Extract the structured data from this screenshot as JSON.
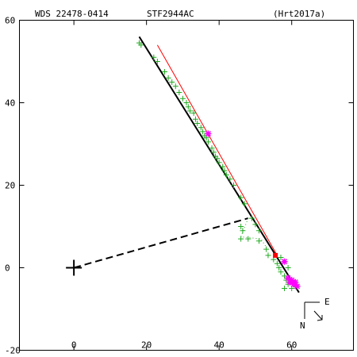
{
  "header": {
    "wds": "WDS 22478-0414",
    "discoverer": "STF2944AC",
    "reference": "(Hrt2017a)"
  },
  "compass": {
    "east": "E",
    "north": "N"
  },
  "chart_data": {
    "type": "scatter",
    "xlim": [
      -15,
      77
    ],
    "ylim": [
      -20,
      60
    ],
    "x_ticks": [
      0,
      20,
      40,
      60
    ],
    "y_ticks": [
      -20,
      0,
      20,
      40,
      60
    ],
    "tick_labels_x": [
      "0",
      "20",
      "40",
      "60"
    ],
    "tick_labels_y": [
      "-20",
      "0",
      "20",
      "40",
      "60"
    ],
    "primary": {
      "x": 0,
      "y": 0,
      "color": "#000000"
    },
    "orbit_fit": {
      "color": "#000000",
      "points": [
        [
          18,
          56
        ],
        [
          62,
          -6
        ]
      ]
    },
    "linear_fit": {
      "color": "#ff0000",
      "points": [
        [
          23,
          54
        ],
        [
          56,
          3
        ]
      ]
    },
    "connector": {
      "color": "#000000",
      "points": [
        [
          0,
          0
        ],
        [
          48,
          12
        ]
      ]
    },
    "series": [
      {
        "marker": "plus",
        "color": "#22aa22",
        "points": [
          [
            18,
            54.5
          ],
          [
            18.5,
            54
          ],
          [
            22,
            51
          ],
          [
            23,
            50
          ],
          [
            25,
            47.5
          ],
          [
            26,
            46
          ],
          [
            27,
            45
          ],
          [
            28,
            44
          ],
          [
            29,
            42.5
          ],
          [
            30,
            41
          ],
          [
            31,
            40
          ],
          [
            31.5,
            39
          ],
          [
            32,
            38
          ],
          [
            33,
            37.5
          ],
          [
            33.5,
            36
          ],
          [
            34,
            35
          ],
          [
            35,
            34
          ],
          [
            35.5,
            33
          ],
          [
            36,
            32
          ],
          [
            36.5,
            31.5
          ],
          [
            37,
            30.5
          ],
          [
            38,
            29
          ],
          [
            38.5,
            28
          ],
          [
            39,
            27
          ],
          [
            39.5,
            26.5
          ],
          [
            40,
            25.5
          ],
          [
            41,
            24.5
          ],
          [
            41.5,
            23.5
          ],
          [
            42,
            22.5
          ],
          [
            43,
            21.5
          ],
          [
            44,
            20
          ],
          [
            46,
            17
          ],
          [
            47,
            15.5
          ],
          [
            49,
            12
          ],
          [
            50,
            10.5
          ],
          [
            51,
            9
          ],
          [
            46,
            10
          ],
          [
            46.5,
            9
          ],
          [
            46,
            7
          ],
          [
            48,
            7
          ],
          [
            51,
            6.5
          ],
          [
            53,
            4.5
          ],
          [
            53.5,
            3
          ],
          [
            55,
            2
          ],
          [
            56,
            1
          ],
          [
            56.5,
            0
          ],
          [
            57,
            -1
          ],
          [
            58,
            -2
          ],
          [
            58.5,
            -3
          ],
          [
            59,
            -4
          ],
          [
            58,
            -5
          ],
          [
            60,
            -5
          ],
          [
            61,
            -4.5
          ],
          [
            59,
            0
          ],
          [
            57,
            2.5
          ]
        ]
      },
      {
        "marker": "star",
        "color": "#ff00ff",
        "points": [
          [
            37,
            32.5
          ],
          [
            58,
            1.5
          ],
          [
            59,
            -2.5
          ],
          [
            59.5,
            -3.5
          ],
          [
            60,
            -3
          ],
          [
            60.5,
            -4
          ],
          [
            61,
            -3.5
          ],
          [
            61.5,
            -4.5
          ]
        ]
      },
      {
        "marker": "square",
        "color": "#ff0000",
        "points": [
          [
            55.5,
            3
          ]
        ]
      }
    ],
    "guide_points": {
      "color": "#22aa22",
      "points": [
        [
          48,
          12
        ],
        [
          46,
          7.5
        ],
        [
          51.5,
          7
        ],
        [
          53,
          5
        ]
      ]
    }
  }
}
